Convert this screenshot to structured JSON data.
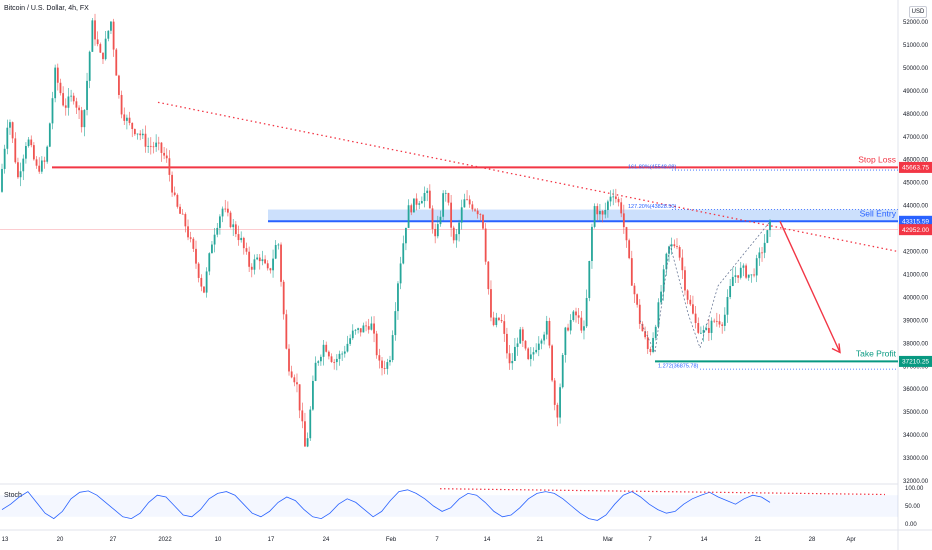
{
  "header": {
    "symbol": "Bitcoin / U.S. Dollar, 4h, FX",
    "currency": "USD"
  },
  "chart_data": {
    "type": "candlestick",
    "y_axis": {
      "min": 32000,
      "max": 52500,
      "ticks": [
        "52000.00",
        "51000.00",
        "50000.00",
        "49000.00",
        "48000.00",
        "47000.00",
        "46000.00",
        "45000.00",
        "44000.00",
        "43000.00",
        "42000.00",
        "41000.00",
        "40000.00",
        "39000.00",
        "38000.00",
        "37000.00",
        "36000.00",
        "35000.00",
        "34000.00",
        "33000.00",
        "32000.00"
      ]
    },
    "x_axis": {
      "ticks": [
        "13",
        "20",
        "27",
        "2022",
        "10",
        "17",
        "24",
        "Feb",
        "7",
        "14",
        "21",
        "Mar",
        "7",
        "14",
        "21",
        "28",
        "Apr"
      ]
    },
    "price_path": [
      44600,
      48100,
      45200,
      47000,
      45600,
      45900,
      49800,
      48300,
      48800,
      47500,
      51900,
      50300,
      52100,
      48300,
      47500,
      47200,
      46600,
      46600,
      46000,
      44000,
      43200,
      41800,
      40200,
      42700,
      43900,
      43200,
      42500,
      41300,
      41800,
      41000,
      42600,
      37200,
      36300,
      33200,
      37000,
      38000,
      37200,
      37600,
      38400,
      38600,
      38900,
      36900,
      37200,
      41000,
      43800,
      44200,
      44600,
      42400,
      44900,
      42200,
      44200,
      44000,
      43600,
      38700,
      39100,
      36900,
      38500,
      37100,
      38100,
      38800,
      34600,
      38600,
      39300,
      38500,
      44000,
      43500,
      44700,
      43800,
      41000,
      38900,
      37500,
      39600,
      42100,
      42400,
      40200,
      38800,
      38400,
      39000,
      39000,
      40900,
      41200,
      40900,
      41900,
      43100
    ],
    "levels": [
      {
        "name": "Stop Loss",
        "price_label": "45663.75",
        "value": 45663.75,
        "color": "#f23645"
      },
      {
        "name": "Sell Entry",
        "price_label": "43315.59",
        "value": 43315.59,
        "color": "#2962ff"
      },
      {
        "name": "Take Profit",
        "price_label": "37210.25",
        "value": 37210.25,
        "color": "#089981"
      }
    ],
    "current_price": {
      "label": "42952.00",
      "value": 42952,
      "color": "#f23645"
    },
    "fib_labels": [
      {
        "text": "161.80%(45548.08)",
        "value": 45548.08
      },
      {
        "text": "127.20%(43828.50)",
        "value": 43828.5
      },
      {
        "text": "1.272(36875.78)",
        "value": 36875.78
      }
    ],
    "stochastic": {
      "title": "Stoch",
      "ticks": [
        "100.00",
        "50.00",
        "0.00"
      ],
      "values": [
        40,
        55,
        75,
        90,
        60,
        30,
        15,
        35,
        70,
        88,
        92,
        80,
        60,
        40,
        20,
        15,
        30,
        60,
        80,
        75,
        50,
        25,
        20,
        40,
        70,
        85,
        90,
        80,
        55,
        30,
        20,
        35,
        60,
        75,
        65,
        40,
        20,
        15,
        30,
        55,
        70,
        60,
        40,
        20,
        35,
        65,
        90,
        95,
        85,
        70,
        50,
        35,
        45,
        70,
        85,
        80,
        60,
        35,
        20,
        25,
        45,
        70,
        85,
        90,
        85,
        70,
        50,
        30,
        15,
        10,
        25,
        55,
        80,
        90,
        75,
        55,
        40,
        30,
        35,
        55,
        70,
        80,
        88,
        75,
        65,
        55,
        70,
        80,
        75,
        60
      ]
    }
  }
}
